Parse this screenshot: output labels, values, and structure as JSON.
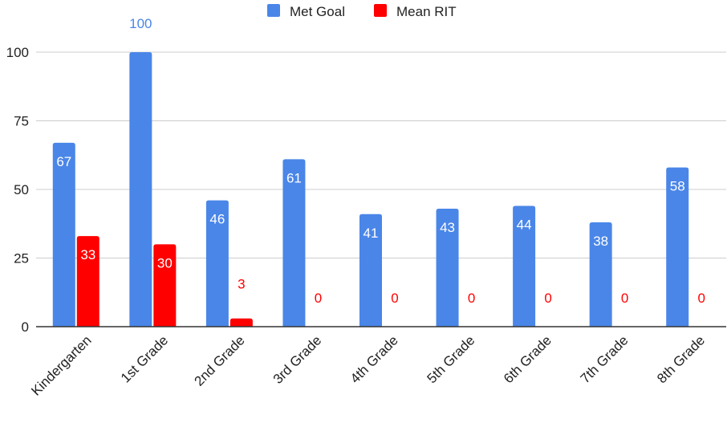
{
  "chart_data": {
    "type": "bar",
    "title": "",
    "xlabel": "",
    "ylabel": "",
    "categories": [
      "Kindergarten",
      "1st Grade",
      "2nd Grade",
      "3rd Grade",
      "4th Grade",
      "5th Grade",
      "6th Grade",
      "7th Grade",
      "8th Grade"
    ],
    "series": [
      {
        "name": "Met Goal",
        "color": "#4a86e8",
        "label_color_outside": "#4a86e8",
        "values": [
          67,
          100,
          46,
          61,
          41,
          43,
          44,
          38,
          58
        ]
      },
      {
        "name": "Mean RIT",
        "color": "#ff0000",
        "label_color_outside": "#ff0000",
        "values": [
          33,
          30,
          3,
          0,
          0,
          0,
          0,
          0,
          0
        ]
      }
    ],
    "ylim": [
      0,
      100
    ],
    "yticks": [
      0,
      25,
      50,
      75,
      100
    ],
    "grid": true,
    "legend": "top-center"
  }
}
